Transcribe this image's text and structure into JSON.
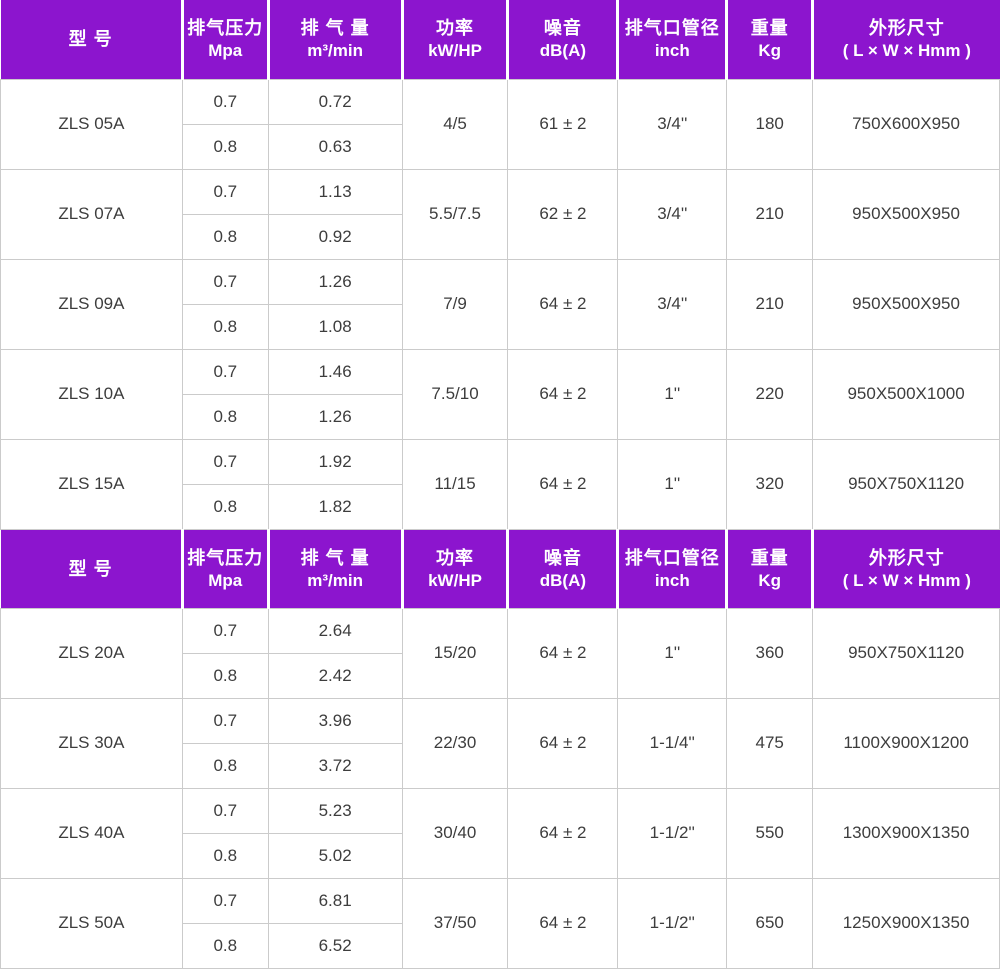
{
  "table": {
    "colors": {
      "header-bg": "#8C15CE",
      "model-text": "#8E1FD2",
      "data-text": "#3D3D3D",
      "grid-line": "#CBCBCB"
    },
    "columns": [
      {
        "key": "model",
        "zh": "型  号",
        "en": ""
      },
      {
        "key": "pressure",
        "zh": "排气压力",
        "en": "Mpa"
      },
      {
        "key": "flow",
        "zh": "排 气 量",
        "en": "m³/min"
      },
      {
        "key": "power",
        "zh": "功率",
        "en": "kW/HP"
      },
      {
        "key": "noise",
        "zh": "噪音",
        "en": "dB(A)"
      },
      {
        "key": "pipe",
        "zh": "排气口管径",
        "en": "inch"
      },
      {
        "key": "weight",
        "zh": "重量",
        "en": "Kg"
      },
      {
        "key": "dims",
        "zh": "外形尺寸",
        "en": "( L × W × Hmm )"
      }
    ],
    "sections": [
      {
        "models": [
          {
            "name": "ZLS 05A",
            "rows": [
              [
                "0.7",
                "0.72"
              ],
              [
                "0.8",
                "0.63"
              ]
            ],
            "power": "4/5",
            "noise": "61 ± 2",
            "pipe": "3/4''",
            "weight": "180",
            "dims": "750X600X950"
          },
          {
            "name": "ZLS 07A",
            "rows": [
              [
                "0.7",
                "1.13"
              ],
              [
                "0.8",
                "0.92"
              ]
            ],
            "power": "5.5/7.5",
            "noise": "62 ± 2",
            "pipe": "3/4''",
            "weight": "210",
            "dims": "950X500X950"
          },
          {
            "name": "ZLS 09A",
            "rows": [
              [
                "0.7",
                "1.26"
              ],
              [
                "0.8",
                "1.08"
              ]
            ],
            "power": "7/9",
            "noise": "64 ± 2",
            "pipe": "3/4''",
            "weight": "210",
            "dims": "950X500X950"
          },
          {
            "name": "ZLS 10A",
            "rows": [
              [
                "0.7",
                "1.46"
              ],
              [
                "0.8",
                "1.26"
              ]
            ],
            "power": "7.5/10",
            "noise": "64 ± 2",
            "pipe": "1''",
            "weight": "220",
            "dims": "950X500X1000"
          },
          {
            "name": "ZLS 15A",
            "rows": [
              [
                "0.7",
                "1.92"
              ],
              [
                "0.8",
                "1.82"
              ]
            ],
            "power": "11/15",
            "noise": "64 ± 2",
            "pipe": "1''",
            "weight": "320",
            "dims": "950X750X1120"
          }
        ]
      },
      {
        "models": [
          {
            "name": "ZLS 20A",
            "rows": [
              [
                "0.7",
                "2.64"
              ],
              [
                "0.8",
                "2.42"
              ]
            ],
            "power": "15/20",
            "noise": "64 ± 2",
            "pipe": "1''",
            "weight": "360",
            "dims": "950X750X1120"
          },
          {
            "name": "ZLS 30A",
            "rows": [
              [
                "0.7",
                "3.96"
              ],
              [
                "0.8",
                "3.72"
              ]
            ],
            "power": "22/30",
            "noise": "64 ± 2",
            "pipe": "1-1/4''",
            "weight": "475",
            "dims": "1100X900X1200"
          },
          {
            "name": "ZLS 40A",
            "rows": [
              [
                "0.7",
                "5.23"
              ],
              [
                "0.8",
                "5.02"
              ]
            ],
            "power": "30/40",
            "noise": "64 ± 2",
            "pipe": "1-1/2''",
            "weight": "550",
            "dims": "1300X900X1350"
          },
          {
            "name": "ZLS 50A",
            "rows": [
              [
                "0.7",
                "6.81"
              ],
              [
                "0.8",
                "6.52"
              ]
            ],
            "power": "37/50",
            "noise": "64 ± 2",
            "pipe": "1-1/2''",
            "weight": "650",
            "dims": "1250X900X1350"
          }
        ]
      }
    ]
  },
  "chart_data": {
    "type": "table",
    "title": "ZLS series air compressor specifications",
    "columns": [
      "型号",
      "排气压力 Mpa",
      "排气量 m³/min",
      "功率 kW/HP",
      "噪音 dB(A)",
      "排气口管径 inch",
      "重量 Kg",
      "外形尺寸 ( L × W × Hmm )"
    ],
    "rows": [
      [
        "ZLS 05A",
        0.7,
        0.72,
        "4/5",
        "61 ± 2",
        "3/4''",
        180,
        "750X600X950"
      ],
      [
        "ZLS 05A",
        0.8,
        0.63,
        "4/5",
        "61 ± 2",
        "3/4''",
        180,
        "750X600X950"
      ],
      [
        "ZLS 07A",
        0.7,
        1.13,
        "5.5/7.5",
        "62 ± 2",
        "3/4''",
        210,
        "950X500X950"
      ],
      [
        "ZLS 07A",
        0.8,
        0.92,
        "5.5/7.5",
        "62 ± 2",
        "3/4''",
        210,
        "950X500X950"
      ],
      [
        "ZLS 09A",
        0.7,
        1.26,
        "7/9",
        "64 ± 2",
        "3/4''",
        210,
        "950X500X950"
      ],
      [
        "ZLS 09A",
        0.8,
        1.08,
        "7/9",
        "64 ± 2",
        "3/4''",
        210,
        "950X500X950"
      ],
      [
        "ZLS 10A",
        0.7,
        1.46,
        "7.5/10",
        "64 ± 2",
        "1''",
        220,
        "950X500X1000"
      ],
      [
        "ZLS 10A",
        0.8,
        1.26,
        "7.5/10",
        "64 ± 2",
        "1''",
        220,
        "950X500X1000"
      ],
      [
        "ZLS 15A",
        0.7,
        1.92,
        "11/15",
        "64 ± 2",
        "1''",
        320,
        "950X750X1120"
      ],
      [
        "ZLS 15A",
        0.8,
        1.82,
        "11/15",
        "64 ± 2",
        "1''",
        320,
        "950X750X1120"
      ],
      [
        "ZLS 20A",
        0.7,
        2.64,
        "15/20",
        "64 ± 2",
        "1''",
        360,
        "950X750X1120"
      ],
      [
        "ZLS 20A",
        0.8,
        2.42,
        "15/20",
        "64 ± 2",
        "1''",
        360,
        "950X750X1120"
      ],
      [
        "ZLS 30A",
        0.7,
        3.96,
        "22/30",
        "64 ± 2",
        "1-1/4''",
        475,
        "1100X900X1200"
      ],
      [
        "ZLS 30A",
        0.8,
        3.72,
        "22/30",
        "64 ± 2",
        "1-1/4''",
        475,
        "1100X900X1200"
      ],
      [
        "ZLS 40A",
        0.7,
        5.23,
        "30/40",
        "64 ± 2",
        "1-1/2''",
        550,
        "1300X900X1350"
      ],
      [
        "ZLS 40A",
        0.8,
        5.02,
        "30/40",
        "64 ± 2",
        "1-1/2''",
        550,
        "1300X900X1350"
      ],
      [
        "ZLS 50A",
        0.7,
        6.81,
        "37/50",
        "64 ± 2",
        "1-1/2''",
        650,
        "1250X900X1350"
      ],
      [
        "ZLS 50A",
        0.8,
        6.52,
        "37/50",
        "64 ± 2",
        "1-1/2''",
        650,
        "1250X900X1350"
      ]
    ]
  }
}
